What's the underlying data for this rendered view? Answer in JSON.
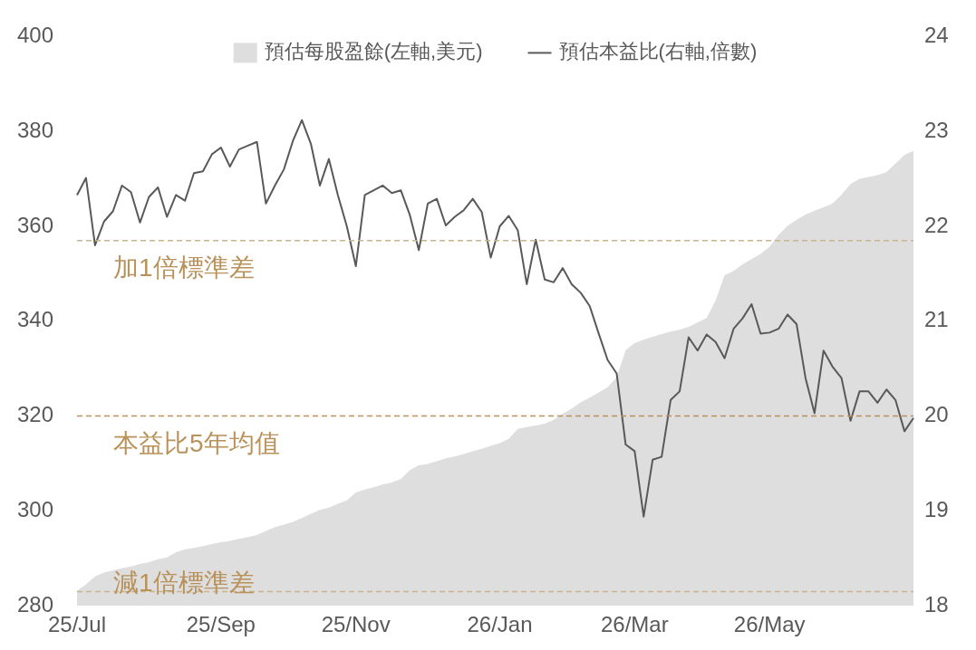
{
  "chart_data": {
    "type": "line",
    "legend": "top",
    "grid": false,
    "marker": "none",
    "categories": [
      "25/Jul",
      null,
      null,
      null,
      null,
      null,
      null,
      null,
      null,
      null,
      null,
      null,
      null,
      null,
      null,
      null,
      "25/Sep",
      null,
      null,
      null,
      null,
      null,
      null,
      null,
      null,
      null,
      null,
      null,
      null,
      null,
      null,
      "25/Nov",
      null,
      null,
      null,
      null,
      null,
      null,
      null,
      null,
      null,
      null,
      null,
      null,
      null,
      null,
      null,
      "26/Jan",
      null,
      null,
      null,
      null,
      null,
      null,
      null,
      null,
      null,
      null,
      null,
      null,
      null,
      null,
      "26/Mar",
      null,
      null,
      null,
      null,
      null,
      null,
      null,
      null,
      null,
      null,
      null,
      null,
      null,
      null,
      "26/May",
      null,
      null,
      null,
      null,
      null,
      null,
      null,
      null,
      null,
      null,
      null,
      null,
      null,
      null,
      null,
      null
    ],
    "ylim": [
      280,
      400
    ],
    "yticks": [
      280,
      300,
      320,
      340,
      360,
      380,
      400
    ],
    "y2lim": [
      18,
      24
    ],
    "y2ticks": [
      18,
      19,
      20,
      21,
      22,
      23,
      24
    ],
    "series": [
      {
        "name": "預估每股盈餘(左軸,美元)",
        "type": "area",
        "color": "#dedede",
        "values": [
          283.2,
          284.5,
          286.2,
          287.0,
          287.5,
          287.9,
          288.3,
          288.8,
          289.2,
          289.8,
          290.2,
          291.3,
          291.9,
          292.2,
          292.6,
          293.0,
          293.4,
          293.7,
          294.1,
          294.5,
          294.9,
          295.8,
          296.6,
          297.1,
          297.7,
          298.5,
          299.4,
          300.2,
          300.7,
          301.5,
          302.2,
          303.9,
          304.5,
          305.0,
          305.6,
          306.0,
          306.7,
          308.6,
          309.6,
          309.9,
          310.5,
          311.1,
          311.5,
          312.0,
          312.6,
          313.1,
          313.7,
          314.3,
          315.2,
          317.3,
          317.7,
          318.0,
          318.4,
          319.2,
          320.5,
          321.6,
          322.9,
          323.9,
          325.0,
          326.1,
          328.2,
          333.9,
          335.4,
          336.1,
          336.7,
          337.3,
          337.8,
          338.2,
          338.8,
          339.7,
          340.7,
          344.4,
          349.7,
          350.6,
          352.0,
          353.1,
          354.2,
          355.7,
          358.2,
          360.1,
          361.4,
          362.5,
          363.3,
          364.0,
          364.8,
          366.7,
          368.9,
          370.0,
          370.4,
          370.8,
          371.4,
          373.2,
          375.1,
          375.9
        ]
      },
      {
        "name": "預估本益比(右軸,倍數)",
        "axis": "y2",
        "color": "#595959",
        "values": [
          22.33,
          22.51,
          21.8,
          22.05,
          22.16,
          22.43,
          22.36,
          22.04,
          22.31,
          22.41,
          22.1,
          22.33,
          22.27,
          22.56,
          22.58,
          22.76,
          22.83,
          22.63,
          22.81,
          22.85,
          22.89,
          22.24,
          22.43,
          22.6,
          22.9,
          23.12,
          22.87,
          22.43,
          22.71,
          22.33,
          22.0,
          21.58,
          22.33,
          22.38,
          22.43,
          22.35,
          22.38,
          22.12,
          21.75,
          22.24,
          22.29,
          22.01,
          22.1,
          22.17,
          22.29,
          22.15,
          21.67,
          22.0,
          22.11,
          21.96,
          21.39,
          21.86,
          21.44,
          21.41,
          21.56,
          21.39,
          21.3,
          21.16,
          20.87,
          20.59,
          20.45,
          19.7,
          19.63,
          18.94,
          19.54,
          19.57,
          20.17,
          20.26,
          20.83,
          20.69,
          20.86,
          20.78,
          20.61,
          20.92,
          21.03,
          21.18,
          20.87,
          20.88,
          20.92,
          21.07,
          20.97,
          20.4,
          20.03,
          20.69,
          20.52,
          20.4,
          19.95,
          20.26,
          20.26,
          20.14,
          20.28,
          20.17,
          19.84,
          19.98
        ]
      }
    ],
    "ref_lines": [
      {
        "axis": "y2",
        "value": 21.85,
        "label": "加1倍標準差",
        "color": "#c9b48f",
        "line_style": "dashed"
      },
      {
        "axis": "y2",
        "value": 20.0,
        "label": "本益比5年均值",
        "color": "#b8925a",
        "line_style": "dashed"
      },
      {
        "axis": "y2",
        "value": 18.15,
        "label": "減1倍標準差",
        "color": "#c9b48f",
        "line_style": "dashed"
      }
    ]
  }
}
